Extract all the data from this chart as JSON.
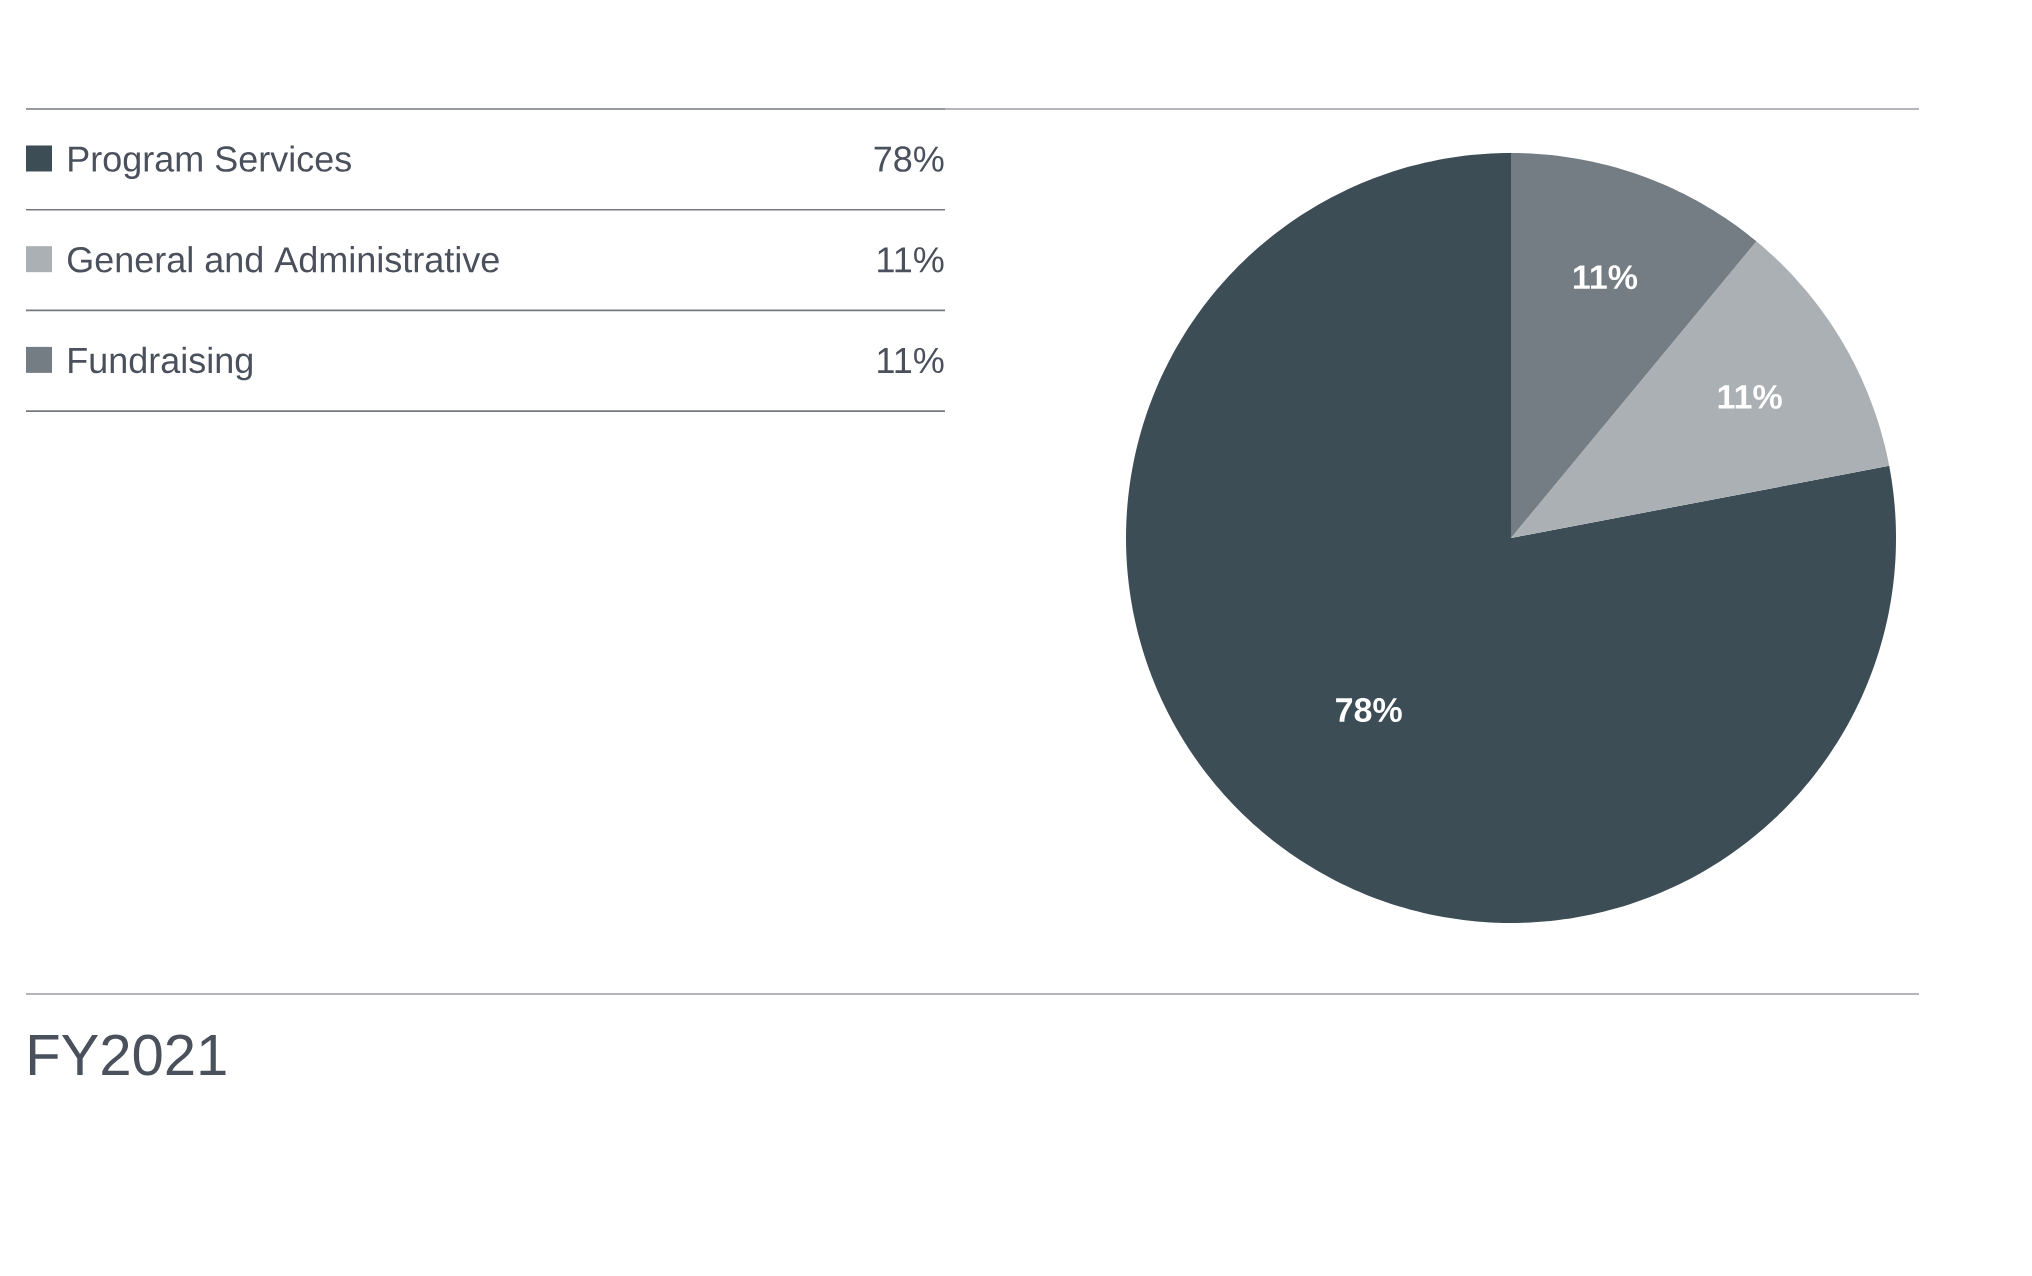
{
  "chart_data": {
    "type": "pie",
    "title": "FY2021",
    "categories": [
      "Program Services",
      "General and Administrative",
      "Fundraising"
    ],
    "values": [
      78,
      11,
      11
    ],
    "colors": [
      "#3d4d56",
      "#aab0b3",
      "#737d83"
    ],
    "value_labels": [
      "78%",
      "11%",
      "11%"
    ],
    "legend": "left"
  }
}
